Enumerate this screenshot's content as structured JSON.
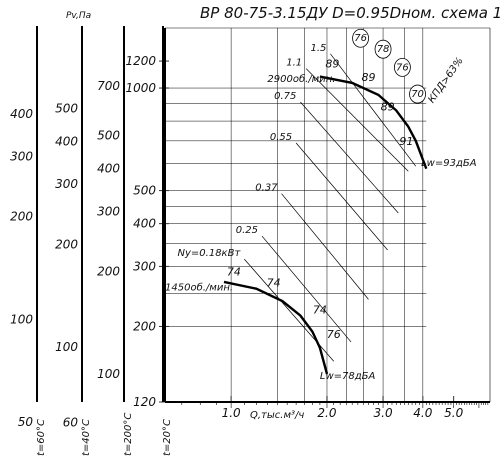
{
  "chart_data": {
    "type": "line",
    "title": "ВР 80-75-3.15ДУ D=0.95Dном. схема 1",
    "xlabel": "Q,тыс.м³/ч",
    "x_axis": {
      "scale": "log",
      "range": [
        0.62,
        6.5
      ],
      "ticks": [
        {
          "value": 1.0,
          "label": "1.0"
        },
        {
          "value": 2.0,
          "label": "2.0"
        },
        {
          "value": 3.0,
          "label": "3.0"
        },
        {
          "value": 4.0,
          "label": "4.0"
        },
        {
          "value": 5.0,
          "label": "5.0"
        }
      ]
    },
    "y_axis": {
      "scale": "log",
      "range": [
        120,
        1500
      ],
      "ticks": [
        {
          "value": 120,
          "label": "120"
        },
        {
          "value": 200,
          "label": "200"
        },
        {
          "value": 300,
          "label": "300"
        },
        {
          "value": 400,
          "label": "400"
        },
        {
          "value": 500,
          "label": "500"
        },
        {
          "value": 1000,
          "label": "1000"
        },
        {
          "value": 1200,
          "label": "1200"
        }
      ]
    },
    "pressure_header": "Pv,Па",
    "density_scales": [
      {
        "label": "t=60°C",
        "ticks": [
          {
            "value": 50,
            "label": "50"
          },
          {
            "value": 100,
            "label": "100"
          },
          {
            "value": 200,
            "label": "200"
          },
          {
            "value": 300,
            "label": "300"
          },
          {
            "value": 400,
            "label": "400"
          }
        ]
      },
      {
        "label": "t=40°C",
        "ticks": [
          {
            "value": 60,
            "label": "60"
          },
          {
            "value": 100,
            "label": "100"
          },
          {
            "value": 200,
            "label": "200"
          },
          {
            "value": 300,
            "label": "300"
          },
          {
            "value": 400,
            "label": "400"
          },
          {
            "value": 500,
            "label": "500"
          }
        ]
      },
      {
        "label": "t=200°C",
        "ticks": [
          {
            "value": 100,
            "label": "100"
          },
          {
            "value": 200,
            "label": "200"
          },
          {
            "value": 300,
            "label": "300"
          },
          {
            "value": 400,
            "label": "400"
          },
          {
            "value": 500,
            "label": "500"
          },
          {
            "value": 700,
            "label": "700"
          }
        ]
      },
      {
        "label": "t=20°C",
        "ticks": []
      }
    ],
    "series": [
      {
        "name": "2900об./мин.",
        "points": [
          [
            1.9,
            1080
          ],
          [
            2.4,
            1035
          ],
          [
            2.9,
            955
          ],
          [
            3.3,
            860
          ],
          [
            3.6,
            770
          ],
          [
            3.8,
            700
          ],
          [
            4.1,
            580
          ]
        ]
      },
      {
        "name": "1450об./мин.",
        "points": [
          [
            0.95,
            270
          ],
          [
            1.2,
            258
          ],
          [
            1.45,
            237
          ],
          [
            1.65,
            215
          ],
          [
            1.8,
            193
          ],
          [
            1.9,
            173
          ],
          [
            2.0,
            145
          ]
        ]
      }
    ],
    "efficiency_labels": [
      {
        "text": "89",
        "x": 2.08,
        "y": 1150
      },
      {
        "text": "89",
        "x": 2.7,
        "y": 1050
      },
      {
        "text": "89",
        "x": 3.1,
        "y": 860
      },
      {
        "text": "91",
        "x": 3.55,
        "y": 680
      },
      {
        "text": "74",
        "x": 1.02,
        "y": 282
      },
      {
        "text": "74",
        "x": 1.36,
        "y": 262
      },
      {
        "text": "74",
        "x": 1.9,
        "y": 218
      },
      {
        "text": "76",
        "x": 2.1,
        "y": 185
      }
    ],
    "noise_levels": [
      {
        "text": "76",
        "x": 2.55,
        "y": 1400
      },
      {
        "text": "78",
        "x": 3.0,
        "y": 1300
      },
      {
        "text": "76",
        "x": 3.45,
        "y": 1150
      },
      {
        "text": "70",
        "x": 3.85,
        "y": 960
      }
    ],
    "efficiency_legend": "КПД>63%",
    "power_lines": [
      {
        "label": "1.5",
        "x": [
          2.05,
          3.8
        ],
        "y": [
          1260,
          590
        ]
      },
      {
        "label": "1.1",
        "x": [
          1.72,
          3.6
        ],
        "y": [
          1140,
          570
        ]
      },
      {
        "label": "0.75",
        "x": [
          1.65,
          3.35
        ],
        "y": [
          910,
          430
        ]
      },
      {
        "label": "0.55",
        "x": [
          1.6,
          3.1
        ],
        "y": [
          690,
          335
        ]
      },
      {
        "label": "0.37",
        "x": [
          1.44,
          2.7
        ],
        "y": [
          490,
          240
        ]
      },
      {
        "label": "0.25",
        "x": [
          1.25,
          2.38
        ],
        "y": [
          368,
          180
        ]
      },
      {
        "label": "Ny=0.18кВт",
        "x": [
          1.1,
          2.1
        ],
        "y": [
          315,
          158
        ]
      }
    ],
    "speed_annotations": [
      {
        "text": "2900об./мин.",
        "x": 1.3,
        "y": 1040
      },
      {
        "text": "1450об./мин.",
        "x": 0.62,
        "y": 255
      }
    ],
    "sound_levels": [
      {
        "text": "Lw=93дБА",
        "x": 3.95,
        "y": 590
      },
      {
        "text": "Lw=78дБА",
        "x": 1.9,
        "y": 140
      }
    ],
    "grid": true,
    "legend": "none"
  }
}
